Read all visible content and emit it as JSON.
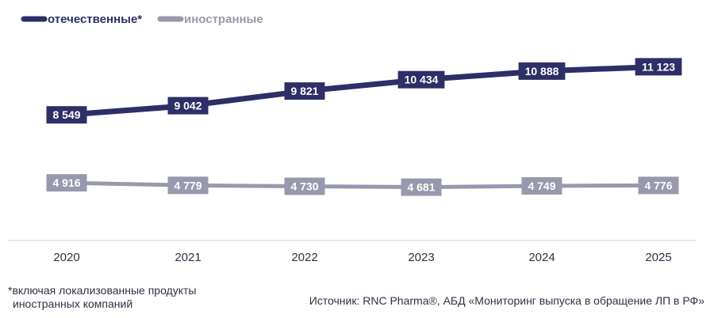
{
  "colors": {
    "domestic": "#2e2f66",
    "foreign": "#9899ac",
    "axis": "#d0d0d8",
    "text": "#2f3140"
  },
  "chart_data": {
    "type": "line",
    "categories": [
      "2020",
      "2021",
      "2022",
      "2023",
      "2024",
      "2025"
    ],
    "series": [
      {
        "name": "отечественные*",
        "values": [
          8549,
          9042,
          9821,
          10434,
          10888,
          11123
        ],
        "labels": [
          "8 549",
          "9 042",
          "9 821",
          "10 434",
          "10 888",
          "11 123"
        ]
      },
      {
        "name": "иностранные",
        "values": [
          4916,
          4779,
          4730,
          4681,
          4749,
          4776
        ],
        "labels": [
          "4 916",
          "4 779",
          "4 730",
          "4 681",
          "4 749",
          "4 776"
        ]
      }
    ],
    "ylim": [
      2000,
      13000
    ],
    "grid": false,
    "legend_position": "top-left"
  },
  "footnote": {
    "line1": "*включая локализованные продукты",
    "line2": "иностранных компаний"
  },
  "source": "Источник: RNC Pharma®, АБД «Мониторинг выпуска в обращение ЛП в РФ»"
}
